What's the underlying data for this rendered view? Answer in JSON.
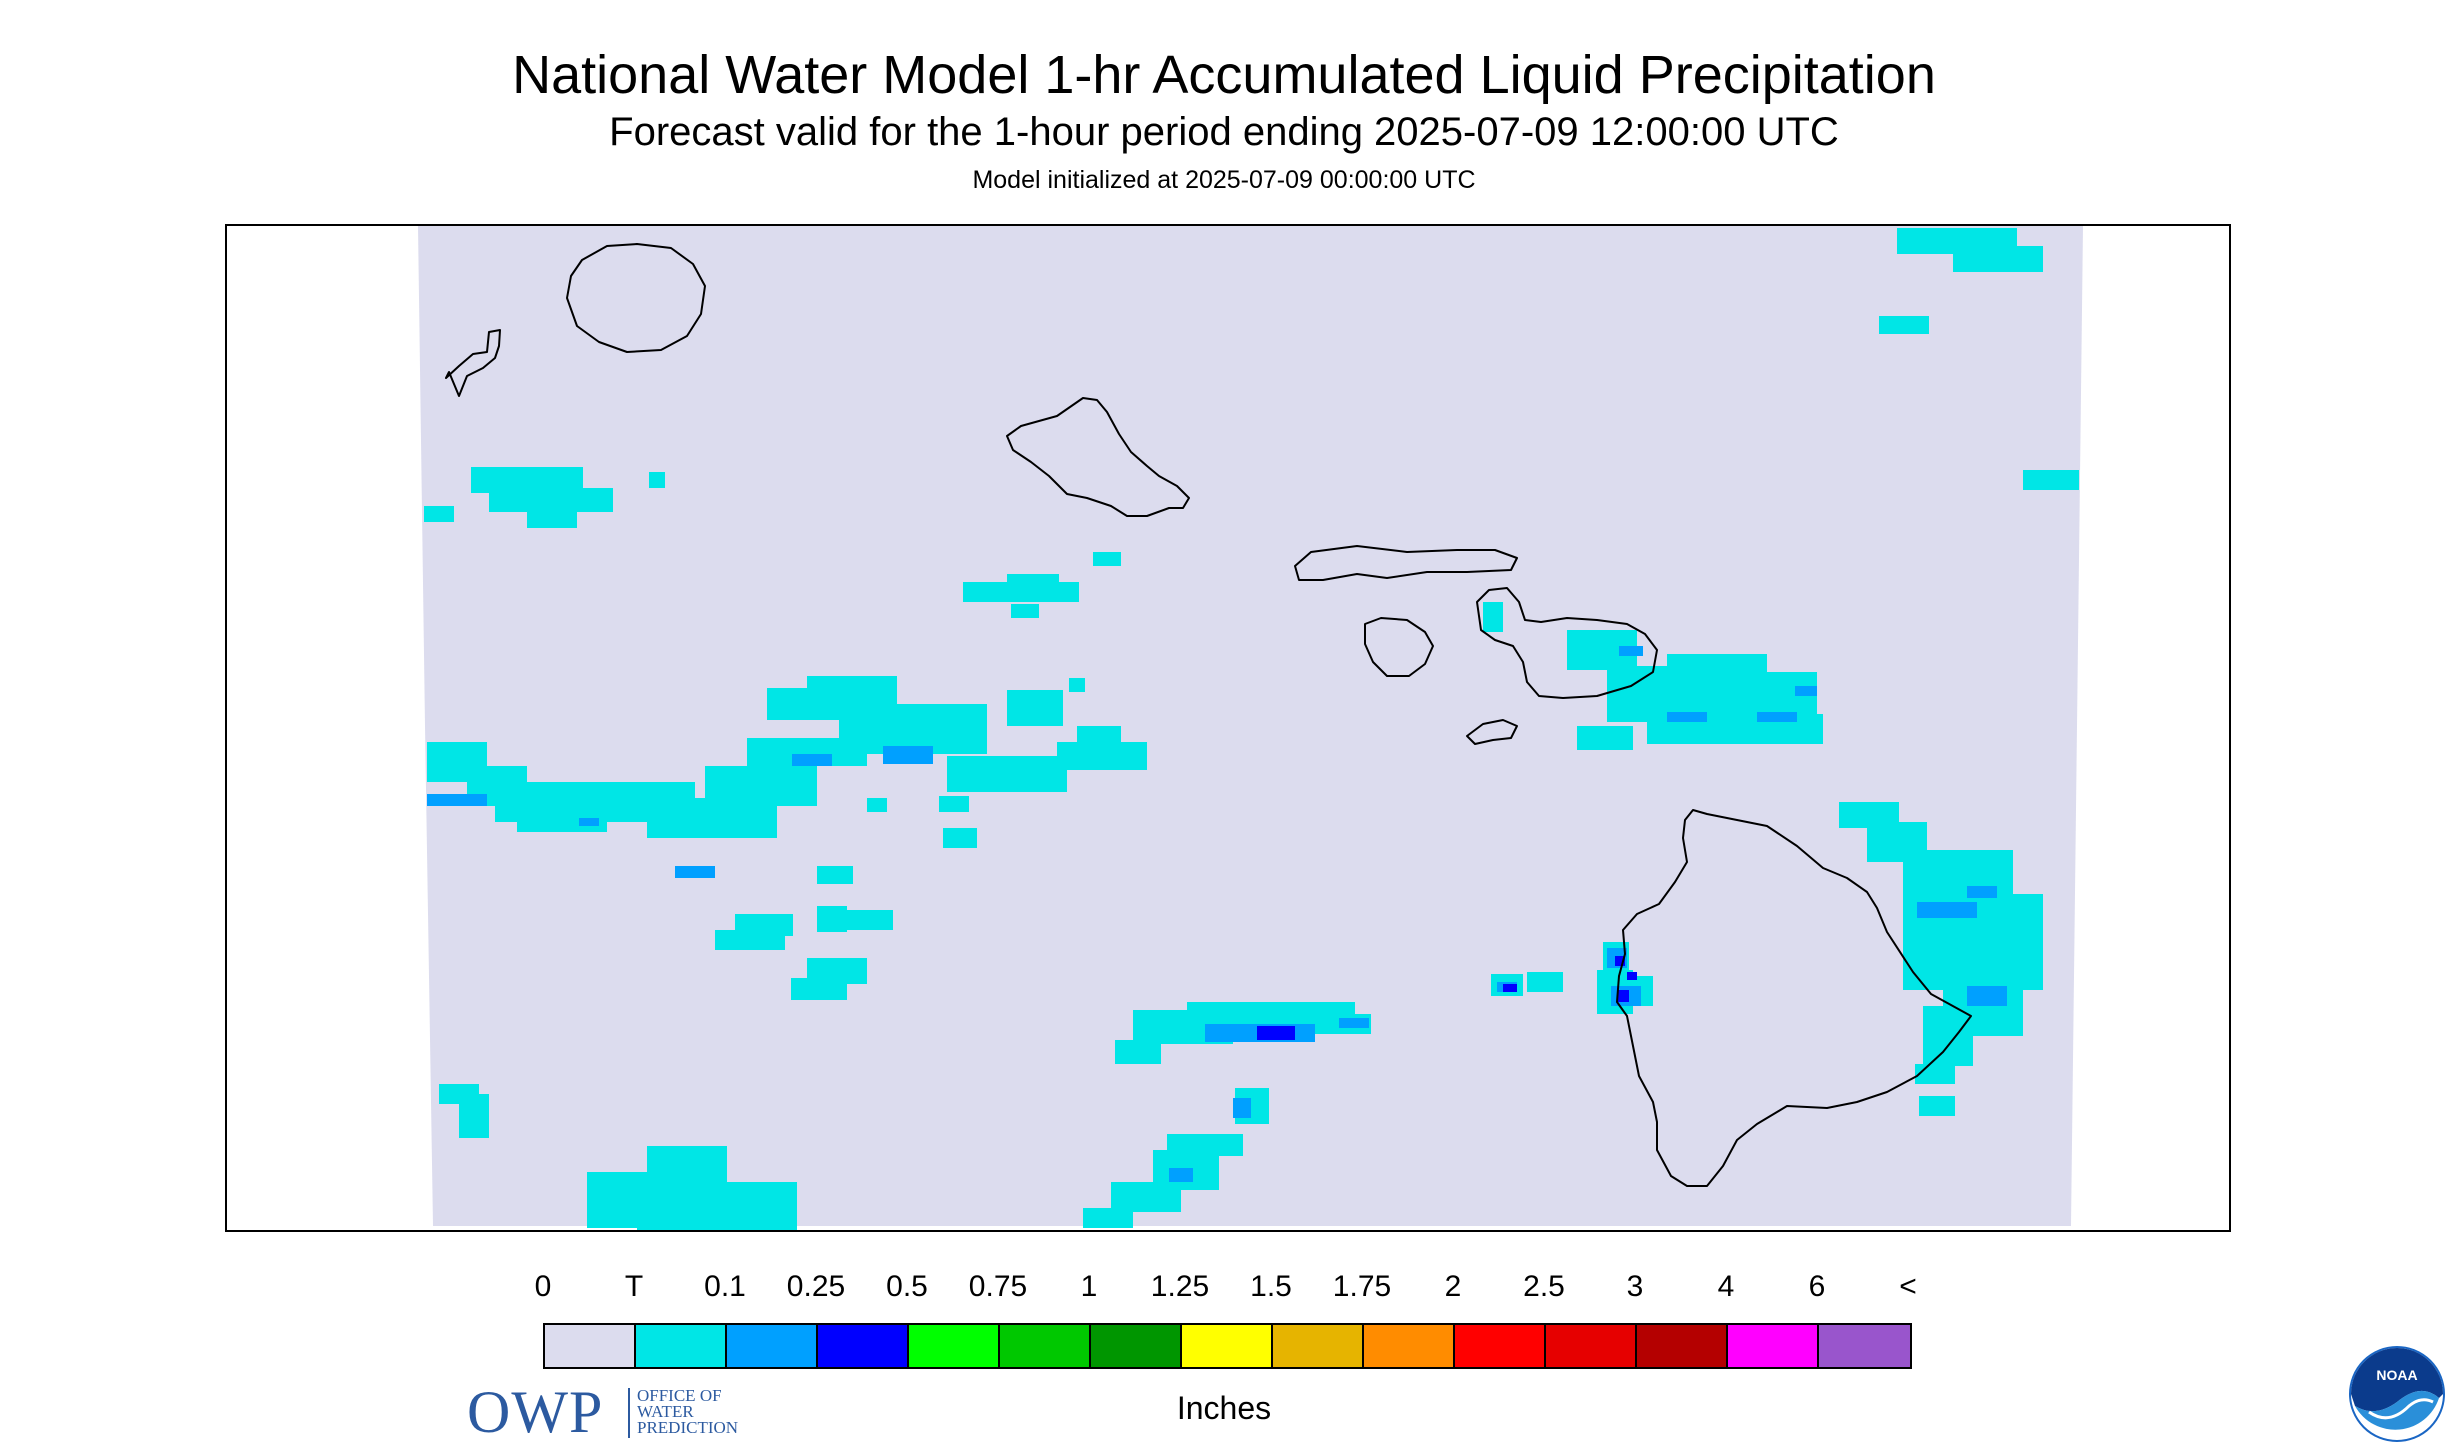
{
  "header": {
    "title": "National Water Model 1-hr Accumulated Liquid Precipitation",
    "subtitle": "Forecast valid for the 1-hour period ending 2025-07-09 12:00:00 UTC",
    "init": "Model initialized at 2025-07-09 00:00:00 UTC"
  },
  "legend": {
    "labels": [
      "0",
      "T",
      "0.1",
      "0.25",
      "0.5",
      "0.75",
      "1",
      "1.25",
      "1.5",
      "1.75",
      "2",
      "2.5",
      "3",
      "4",
      "6",
      "<"
    ],
    "colors": [
      "#dcdcee",
      "#00e6e6",
      "#00a0ff",
      "#0000ff",
      "#00ff00",
      "#00c800",
      "#009600",
      "#ffff00",
      "#e6b400",
      "#ff8c00",
      "#ff0000",
      "#e60000",
      "#b40000",
      "#ff00ff",
      "#9955cc"
    ],
    "units": "Inches"
  },
  "logos": {
    "owp_letters": "OWP",
    "owp_text": "OFFICE OF\nWATER\nPREDICTION",
    "noaa_text": "NOAA"
  },
  "map": {
    "background_color": "#dcdcee",
    "light_color": "#00e6e6",
    "medium_color": "#00a0ff",
    "heavy_color": "#0000ff"
  }
}
